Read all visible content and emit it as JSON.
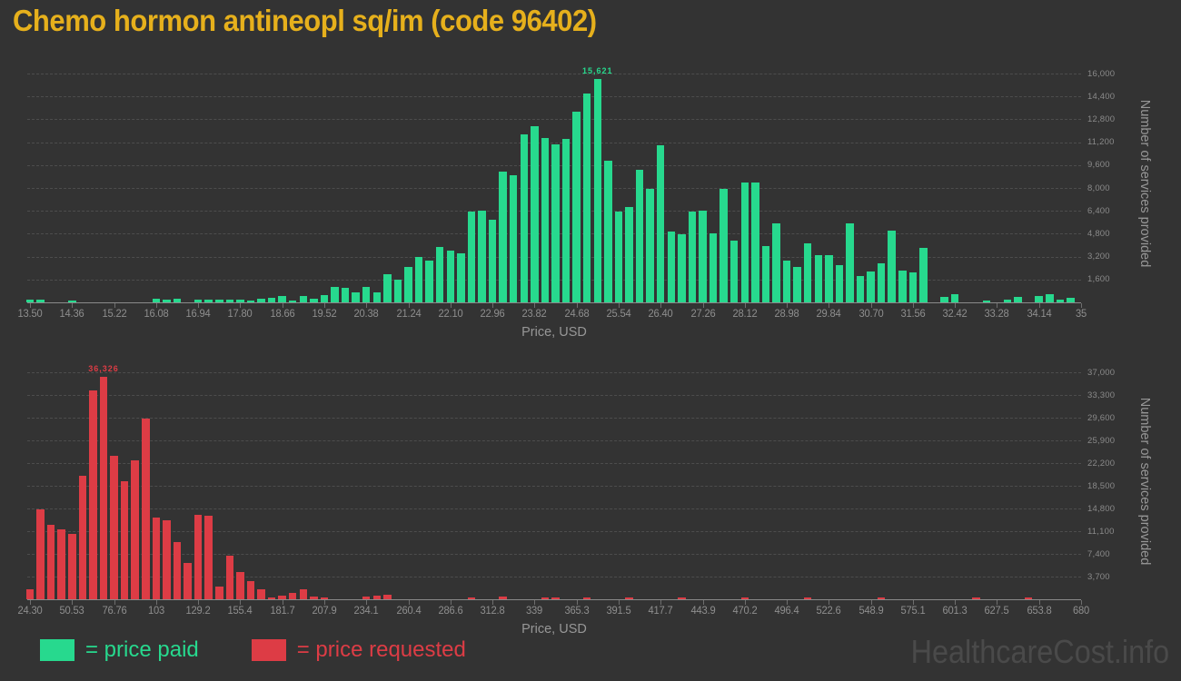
{
  "title": "Chemo hormon antineopl sq/im (code 96402)",
  "watermark": "HealthcareCost.info",
  "legend": {
    "paid_label": "= price paid",
    "requested_label": "= price requested"
  },
  "colors": {
    "background": "#333333",
    "title": "#e6b01c",
    "paid": "#27d98e",
    "requested": "#dd3c45",
    "tick_text": "#8e8e8e",
    "y_tick_text": "#8a8a8a",
    "gridline": "#4d4d4d",
    "axis_line": "#8a8a8a",
    "axis_title": "#979797",
    "watermark": "#4a4a4a"
  },
  "chart_data": [
    {
      "type": "bar",
      "name": "price paid",
      "color": "#27d98e",
      "xlabel": "Price, USD",
      "ylabel": "Number of services provided",
      "grid": "dashed-horizontal",
      "legend_position": "bottom-left",
      "bin_start": 13.5,
      "bin_width": 0.215,
      "xlim": [
        13.5,
        35
      ],
      "ylim": [
        0,
        16000
      ],
      "y_tick_step": 1600,
      "y_tick_labels": [
        "1,600",
        "3,200",
        "4,800",
        "6,400",
        "8,000",
        "9,600",
        "11,200",
        "12,800",
        "14,400",
        "16,000"
      ],
      "x_tick_labels": [
        "13.50",
        "14.36",
        "15.22",
        "16.08",
        "16.94",
        "17.80",
        "18.66",
        "19.52",
        "20.38",
        "21.24",
        "22.10",
        "22.96",
        "23.82",
        "24.68",
        "25.54",
        "26.40",
        "27.26",
        "28.12",
        "28.98",
        "29.84",
        "30.70",
        "31.56",
        "32.42",
        "33.28",
        "34.14",
        "35"
      ],
      "peak_label": "15,621",
      "peak_index": 54,
      "values": [
        190,
        170,
        0,
        0,
        150,
        0,
        0,
        0,
        0,
        0,
        0,
        0,
        230,
        190,
        270,
        0,
        190,
        170,
        170,
        210,
        170,
        130,
        250,
        300,
        420,
        130,
        420,
        250,
        510,
        1080,
        1020,
        700,
        1080,
        700,
        2000,
        1570,
        2500,
        3200,
        2930,
        3860,
        3600,
        3400,
        6340,
        6440,
        5790,
        9140,
        8900,
        11720,
        12340,
        11470,
        11040,
        11400,
        13310,
        14600,
        15621,
        9920,
        6340,
        6700,
        9290,
        7970,
        10980,
        4980,
        4760,
        6340,
        6400,
        4860,
        7970,
        4300,
        8400,
        8400,
        3950,
        5530,
        2930,
        2460,
        4160,
        3300,
        3300,
        2600,
        5500,
        1870,
        2140,
        2730,
        5050,
        2250,
        2080,
        3800,
        0,
        380,
        590,
        0,
        0,
        130,
        0,
        170,
        400,
        0,
        470,
        550,
        170,
        340
      ]
    },
    {
      "type": "bar",
      "name": "price requested",
      "color": "#dd3c45",
      "xlabel": "Price, USD",
      "ylabel": "Number of services provided",
      "grid": "dashed-horizontal",
      "legend_position": "bottom-left",
      "bin_start": 24.3,
      "bin_width": 6.557,
      "xlim": [
        24.3,
        680
      ],
      "ylim": [
        0,
        37000
      ],
      "y_tick_step": 3700,
      "y_tick_labels": [
        "3,700",
        "7,400",
        "11,100",
        "14,800",
        "18,500",
        "22,200",
        "25,900",
        "29,600",
        "33,300",
        "37,000"
      ],
      "x_tick_labels": [
        "24.30",
        "50.53",
        "76.76",
        "103",
        "129.2",
        "155.4",
        "181.7",
        "207.9",
        "234.1",
        "260.4",
        "286.6",
        "312.8",
        "339",
        "365.3",
        "391.5",
        "417.7",
        "443.9",
        "470.2",
        "496.4",
        "522.6",
        "548.9",
        "575.1",
        "601.3",
        "627.5",
        "653.8",
        "680"
      ],
      "peak_label": "36,326",
      "peak_index": 7,
      "values": [
        1700,
        14600,
        12100,
        11400,
        10700,
        20100,
        34000,
        36326,
        23400,
        19200,
        22600,
        29500,
        13300,
        12900,
        9300,
        6000,
        13800,
        13600,
        2100,
        7100,
        4500,
        2900,
        1600,
        250,
        600,
        1000,
        1600,
        400,
        100,
        0,
        0,
        0,
        400,
        600,
        800,
        0,
        0,
        0,
        0,
        0,
        0,
        0,
        150,
        0,
        0,
        400,
        0,
        0,
        0,
        150,
        150,
        0,
        0,
        200,
        0,
        0,
        0,
        150,
        0,
        0,
        0,
        0,
        100,
        0,
        0,
        0,
        0,
        0,
        100,
        0,
        0,
        0,
        0,
        0,
        100,
        0,
        0,
        0,
        0,
        0,
        0,
        100,
        0,
        0,
        0,
        0,
        0,
        0,
        0,
        0,
        100,
        0,
        0,
        0,
        0,
        100,
        0,
        0,
        0,
        0
      ]
    }
  ]
}
